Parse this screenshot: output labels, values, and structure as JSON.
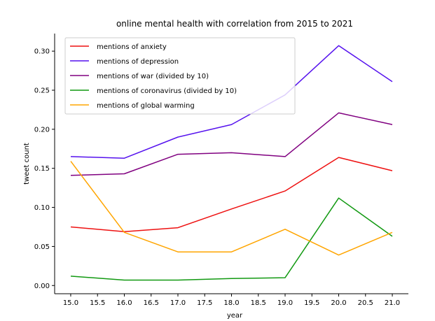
{
  "chart_data": {
    "type": "line",
    "title": "online mental health with correlation from 2015 to 2021",
    "xlabel": "year",
    "ylabel": "tweet count",
    "xlim": [
      14.7,
      21.3
    ],
    "ylim": [
      -0.0105,
      0.3225
    ],
    "xticks": [
      "15.0",
      "15.5",
      "16.0",
      "16.5",
      "17.0",
      "17.5",
      "18.0",
      "18.5",
      "19.0",
      "19.5",
      "20.0",
      "20.5",
      "21.0"
    ],
    "yticks": [
      "0.00",
      "0.05",
      "0.10",
      "0.15",
      "0.20",
      "0.25",
      "0.30"
    ],
    "x": [
      15,
      16,
      17,
      18,
      19,
      20,
      21
    ],
    "legend_position": "top-left",
    "grid": false,
    "series": [
      {
        "name": "mentions of anxiety",
        "color": "#ee1111",
        "values": [
          0.075,
          0.069,
          0.074,
          0.098,
          0.121,
          0.164,
          0.147
        ]
      },
      {
        "name": "mentions of depression",
        "color": "#5511ee",
        "values": [
          0.165,
          0.163,
          0.19,
          0.206,
          0.244,
          0.307,
          0.261
        ]
      },
      {
        "name": "mentions of war (divided by 10)",
        "color": "#800080",
        "values": [
          0.141,
          0.143,
          0.168,
          0.17,
          0.165,
          0.221,
          0.206
        ]
      },
      {
        "name": "mentions of coronavirus (divided by 10)",
        "color": "#119911",
        "values": [
          0.012,
          0.007,
          0.007,
          0.009,
          0.01,
          0.112,
          0.063
        ]
      },
      {
        "name": "mentions of global warming",
        "color": "#ffa500",
        "values": [
          0.159,
          0.068,
          0.043,
          0.043,
          0.072,
          0.039,
          0.068
        ]
      }
    ]
  }
}
